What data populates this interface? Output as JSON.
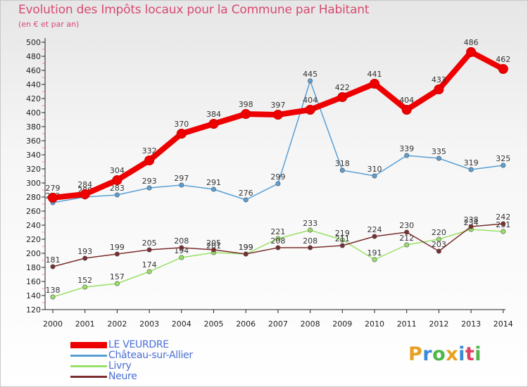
{
  "title": "Evolution des Impôts locaux pour la Commune par Habitant",
  "subtitle": "(en € et par an)",
  "logo": {
    "text": "Proxiti",
    "colors": [
      "#e8a020",
      "#3a8ad6",
      "#4cb848",
      "#e8a020",
      "#3a8ad6",
      "#e04060",
      "#4cb848"
    ]
  },
  "chart_data": {
    "type": "line",
    "title": "Evolution des Impôts locaux pour la Commune par Habitant",
    "subtitle": "(en € et par an)",
    "categories": [
      "2000",
      "2001",
      "2002",
      "2003",
      "2004",
      "2005",
      "2006",
      "2007",
      "2008",
      "2009",
      "2010",
      "2011",
      "2012",
      "2013",
      "2014"
    ],
    "ylim": [
      120,
      500
    ],
    "yticks": [
      120,
      140,
      160,
      180,
      200,
      220,
      240,
      260,
      280,
      300,
      320,
      340,
      360,
      380,
      400,
      420,
      440,
      460,
      480,
      500
    ],
    "grid": false,
    "legend_position": "bottom-left",
    "series": [
      {
        "name": "LE VEURDRE",
        "color": "#ee0000",
        "values": [
          279,
          284,
          304,
          332,
          370,
          384,
          398,
          397,
          404,
          422,
          441,
          404,
          433,
          486,
          462
        ],
        "labels": [
          "279",
          "284",
          "304",
          "332",
          "370",
          "384",
          "398",
          "397",
          "404",
          "422",
          "441",
          "404",
          "433",
          "486",
          "462"
        ]
      },
      {
        "name": "Château-sur-Allier",
        "color": "#5a9fd4",
        "values": [
          272,
          280,
          283,
          293,
          297,
          291,
          276,
          299,
          445,
          318,
          310,
          339,
          335,
          319,
          325
        ],
        "labels": [
          "272",
          "280",
          "283",
          "293",
          "297",
          "291",
          "276",
          "299",
          "445",
          "318",
          "310",
          "339",
          "335",
          "319",
          "325"
        ]
      },
      {
        "name": "Livry",
        "color": "#99e066",
        "values": [
          138,
          152,
          157,
          174,
          194,
          201,
          199,
          221,
          233,
          219,
          191,
          212,
          220,
          234,
          231
        ],
        "labels": [
          "138",
          "152",
          "157",
          "174",
          "194",
          "201",
          "199",
          "221",
          "233",
          "219",
          "191",
          "212",
          "220",
          "234",
          "231"
        ]
      },
      {
        "name": "Neure",
        "color": "#7a2e2e",
        "values": [
          181,
          193,
          199,
          205,
          208,
          205,
          199,
          208,
          208,
          211,
          224,
          230,
          203,
          238,
          242
        ],
        "labels": [
          "181",
          "193",
          "199",
          "205",
          "208",
          "205",
          "199",
          "208",
          "208",
          "211",
          "224",
          "230",
          "203",
          "238",
          "242"
        ]
      }
    ]
  }
}
